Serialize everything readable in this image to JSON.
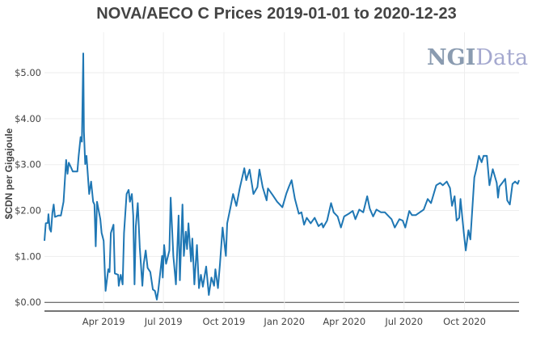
{
  "chart_data": {
    "type": "line",
    "title": "NOVA/AECO C Prices 2019-01-01 to 2020-12-23",
    "xlabel": "",
    "ylabel": "$CDN per Gigajoule",
    "xlim": [
      "2019-01-01",
      "2020-12-23"
    ],
    "ylim": [
      -0.19,
      5.88
    ],
    "x_ticks": [
      {
        "date": "2019-04-01",
        "label": "Apr 2019"
      },
      {
        "date": "2019-07-01",
        "label": "Jul 2019"
      },
      {
        "date": "2019-10-01",
        "label": "Oct 2019"
      },
      {
        "date": "2020-01-01",
        "label": "Jan 2020"
      },
      {
        "date": "2020-04-01",
        "label": "Apr 2020"
      },
      {
        "date": "2020-07-01",
        "label": "Jul 2020"
      },
      {
        "date": "2020-10-01",
        "label": "Oct 2020"
      }
    ],
    "y_ticks": [
      {
        "value": 0,
        "label": "$0.00"
      },
      {
        "value": 1,
        "label": "$1.00"
      },
      {
        "value": 2,
        "label": "$2.00"
      },
      {
        "value": 3,
        "label": "$3.00"
      },
      {
        "value": 4,
        "label": "$4.00"
      },
      {
        "value": 5,
        "label": "$5.00"
      }
    ],
    "grid": true,
    "line_color": "#1f77b4",
    "series": [
      {
        "points": [
          [
            "2019-01-01",
            1.34
          ],
          [
            "2019-01-03",
            1.72
          ],
          [
            "2019-01-06",
            1.73
          ],
          [
            "2019-01-07",
            1.92
          ],
          [
            "2019-01-09",
            1.6
          ],
          [
            "2019-01-11",
            1.54
          ],
          [
            "2019-01-13",
            1.95
          ],
          [
            "2019-01-15",
            2.13
          ],
          [
            "2019-01-17",
            1.86
          ],
          [
            "2019-01-22",
            1.89
          ],
          [
            "2019-01-26",
            1.89
          ],
          [
            "2019-01-30",
            2.19
          ],
          [
            "2019-02-03",
            3.1
          ],
          [
            "2019-02-05",
            2.8
          ],
          [
            "2019-02-07",
            3.04
          ],
          [
            "2019-02-10",
            2.95
          ],
          [
            "2019-02-13",
            2.85
          ],
          [
            "2019-02-20",
            2.85
          ],
          [
            "2019-02-22",
            3.19
          ],
          [
            "2019-02-25",
            3.6
          ],
          [
            "2019-02-27",
            3.5
          ],
          [
            "2019-03-01",
            5.42
          ],
          [
            "2019-03-02",
            3.72
          ],
          [
            "2019-03-04",
            3.01
          ],
          [
            "2019-03-06",
            3.19
          ],
          [
            "2019-03-10",
            2.36
          ],
          [
            "2019-03-13",
            2.63
          ],
          [
            "2019-03-16",
            2.19
          ],
          [
            "2019-03-18",
            2.13
          ],
          [
            "2019-03-20",
            1.22
          ],
          [
            "2019-03-22",
            2.19
          ],
          [
            "2019-03-27",
            1.81
          ],
          [
            "2019-03-29",
            1.51
          ],
          [
            "2019-04-01",
            1.34
          ],
          [
            "2019-04-04",
            0.25
          ],
          [
            "2019-04-08",
            0.72
          ],
          [
            "2019-04-10",
            0.66
          ],
          [
            "2019-04-12",
            1.51
          ],
          [
            "2019-04-16",
            1.69
          ],
          [
            "2019-04-18",
            0.63
          ],
          [
            "2019-04-23",
            0.6
          ],
          [
            "2019-04-24",
            0.36
          ],
          [
            "2019-04-27",
            0.6
          ],
          [
            "2019-04-30",
            0.39
          ],
          [
            "2019-05-02",
            1.51
          ],
          [
            "2019-05-06",
            2.36
          ],
          [
            "2019-05-09",
            2.45
          ],
          [
            "2019-05-11",
            2.19
          ],
          [
            "2019-05-14",
            2.36
          ],
          [
            "2019-05-16",
            1.89
          ],
          [
            "2019-05-18",
            0.39
          ],
          [
            "2019-05-20",
            1.66
          ],
          [
            "2019-05-23",
            2.16
          ],
          [
            "2019-05-26",
            1.19
          ],
          [
            "2019-05-30",
            0.36
          ],
          [
            "2019-06-01",
            0.84
          ],
          [
            "2019-06-04",
            1.13
          ],
          [
            "2019-06-07",
            0.75
          ],
          [
            "2019-06-11",
            0.66
          ],
          [
            "2019-06-15",
            0.28
          ],
          [
            "2019-06-18",
            0.25
          ],
          [
            "2019-06-21",
            0.06
          ],
          [
            "2019-06-23",
            0.25
          ],
          [
            "2019-06-29",
            1.01
          ],
          [
            "2019-06-30",
            0.54
          ],
          [
            "2019-07-02",
            1.25
          ],
          [
            "2019-07-05",
            0.84
          ],
          [
            "2019-07-10",
            1.13
          ],
          [
            "2019-07-12",
            2.28
          ],
          [
            "2019-07-16",
            1.01
          ],
          [
            "2019-07-20",
            0.39
          ],
          [
            "2019-07-24",
            1.89
          ],
          [
            "2019-07-26",
            0.48
          ],
          [
            "2019-07-30",
            2.13
          ],
          [
            "2019-08-01",
            1.01
          ],
          [
            "2019-08-04",
            1.54
          ],
          [
            "2019-08-06",
            1.16
          ],
          [
            "2019-08-08",
            1.72
          ],
          [
            "2019-08-12",
            0.89
          ],
          [
            "2019-08-14",
            1.39
          ],
          [
            "2019-08-17",
            0.39
          ],
          [
            "2019-08-21",
            1.25
          ],
          [
            "2019-08-24",
            0.31
          ],
          [
            "2019-08-27",
            0.6
          ],
          [
            "2019-08-30",
            0.34
          ],
          [
            "2019-09-04",
            0.78
          ],
          [
            "2019-09-08",
            0.16
          ],
          [
            "2019-09-12",
            0.54
          ],
          [
            "2019-09-16",
            0.36
          ],
          [
            "2019-09-18",
            0.72
          ],
          [
            "2019-09-22",
            0.31
          ],
          [
            "2019-09-25",
            0.84
          ],
          [
            "2019-09-29",
            1.63
          ],
          [
            "2019-10-04",
            1.01
          ],
          [
            "2019-10-06",
            1.72
          ],
          [
            "2019-10-11",
            2.07
          ],
          [
            "2019-10-15",
            2.36
          ],
          [
            "2019-10-20",
            2.1
          ],
          [
            "2019-10-25",
            2.48
          ],
          [
            "2019-11-01",
            2.92
          ],
          [
            "2019-11-04",
            2.66
          ],
          [
            "2019-11-09",
            2.89
          ],
          [
            "2019-11-15",
            2.36
          ],
          [
            "2019-11-21",
            2.51
          ],
          [
            "2019-11-24",
            2.89
          ],
          [
            "2019-11-29",
            2.51
          ],
          [
            "2019-12-05",
            2.22
          ],
          [
            "2019-12-07",
            2.48
          ],
          [
            "2019-12-14",
            2.34
          ],
          [
            "2019-12-21",
            2.19
          ],
          [
            "2019-12-29",
            2.07
          ],
          [
            "2020-01-04",
            2.37
          ],
          [
            "2020-01-08",
            2.52
          ],
          [
            "2020-01-12",
            2.66
          ],
          [
            "2020-01-17",
            2.25
          ],
          [
            "2020-01-23",
            1.93
          ],
          [
            "2020-01-27",
            1.96
          ],
          [
            "2020-01-31",
            1.69
          ],
          [
            "2020-02-04",
            1.84
          ],
          [
            "2020-02-10",
            1.72
          ],
          [
            "2020-02-16",
            1.84
          ],
          [
            "2020-02-22",
            1.66
          ],
          [
            "2020-02-27",
            1.72
          ],
          [
            "2020-02-29",
            1.63
          ],
          [
            "2020-03-06",
            1.78
          ],
          [
            "2020-03-12",
            2.16
          ],
          [
            "2020-03-16",
            1.96
          ],
          [
            "2020-03-22",
            1.87
          ],
          [
            "2020-03-27",
            1.63
          ],
          [
            "2020-04-01",
            1.87
          ],
          [
            "2020-04-08",
            1.93
          ],
          [
            "2020-04-14",
            1.99
          ],
          [
            "2020-04-18",
            1.81
          ],
          [
            "2020-04-24",
            2.02
          ],
          [
            "2020-04-30",
            1.96
          ],
          [
            "2020-05-06",
            2.31
          ],
          [
            "2020-05-10",
            2.04
          ],
          [
            "2020-05-15",
            1.87
          ],
          [
            "2020-05-20",
            2.02
          ],
          [
            "2020-05-27",
            1.96
          ],
          [
            "2020-06-02",
            1.96
          ],
          [
            "2020-06-08",
            1.87
          ],
          [
            "2020-06-12",
            1.81
          ],
          [
            "2020-06-17",
            1.63
          ],
          [
            "2020-06-24",
            1.81
          ],
          [
            "2020-06-29",
            1.78
          ],
          [
            "2020-07-03",
            1.63
          ],
          [
            "2020-07-09",
            1.99
          ],
          [
            "2020-07-13",
            1.9
          ],
          [
            "2020-07-19",
            1.9
          ],
          [
            "2020-07-25",
            1.96
          ],
          [
            "2020-07-31",
            2.02
          ],
          [
            "2020-08-06",
            2.25
          ],
          [
            "2020-08-11",
            2.16
          ],
          [
            "2020-08-19",
            2.55
          ],
          [
            "2020-08-25",
            2.6
          ],
          [
            "2020-08-29",
            2.55
          ],
          [
            "2020-09-04",
            2.63
          ],
          [
            "2020-09-09",
            2.49
          ],
          [
            "2020-09-12",
            2.1
          ],
          [
            "2020-09-16",
            2.31
          ],
          [
            "2020-09-19",
            1.78
          ],
          [
            "2020-09-23",
            1.84
          ],
          [
            "2020-09-25",
            2.25
          ],
          [
            "2020-09-30",
            1.51
          ],
          [
            "2020-10-03",
            1.13
          ],
          [
            "2020-10-07",
            1.57
          ],
          [
            "2020-10-10",
            1.37
          ],
          [
            "2020-10-16",
            2.72
          ],
          [
            "2020-10-19",
            2.9
          ],
          [
            "2020-10-23",
            3.19
          ],
          [
            "2020-10-27",
            3.05
          ],
          [
            "2020-10-30",
            3.19
          ],
          [
            "2020-11-04",
            3.19
          ],
          [
            "2020-11-08",
            2.55
          ],
          [
            "2020-11-13",
            2.9
          ],
          [
            "2020-11-19",
            2.6
          ],
          [
            "2020-11-21",
            2.28
          ],
          [
            "2020-11-23",
            2.52
          ],
          [
            "2020-11-29",
            2.63
          ],
          [
            "2020-12-02",
            2.69
          ],
          [
            "2020-12-05",
            2.22
          ],
          [
            "2020-12-09",
            2.13
          ],
          [
            "2020-12-13",
            2.58
          ],
          [
            "2020-12-17",
            2.63
          ],
          [
            "2020-12-21",
            2.58
          ],
          [
            "2020-12-23",
            2.66
          ]
        ]
      }
    ]
  },
  "logo": {
    "text": "NGIData",
    "part1": "NGI",
    "part2": "Data"
  }
}
